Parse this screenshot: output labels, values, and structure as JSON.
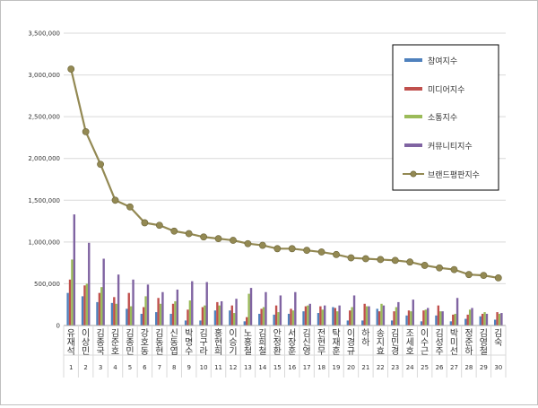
{
  "chart_data": {
    "type": "bar",
    "title": "",
    "xlabel": "",
    "ylabel": "",
    "ylim": [
      0,
      3500000
    ],
    "yticks": [
      0,
      500000,
      1000000,
      1500000,
      2000000,
      2500000,
      3000000,
      3500000
    ],
    "ytick_labels": [
      "0",
      "500,000",
      "1,000,000",
      "1,500,000",
      "2,000,000",
      "2,500,000",
      "3,000,000",
      "3,500,000"
    ],
    "grid": true,
    "legend_position": "top-right",
    "categories": [
      "1",
      "2",
      "3",
      "4",
      "5",
      "6",
      "7",
      "8",
      "9",
      "10",
      "11",
      "12",
      "13",
      "14",
      "15",
      "16",
      "17",
      "18",
      "19",
      "20",
      "21",
      "22",
      "23",
      "24",
      "25",
      "26",
      "27",
      "28",
      "29",
      "30"
    ],
    "category_names": [
      "유재석",
      "이상민",
      "김종국",
      "김준호",
      "김종민",
      "강호동",
      "김동현",
      "신동엽",
      "박명수",
      "김구라",
      "홍현희",
      "이승기",
      "노홍철",
      "김희철",
      "안정환",
      "서장훈",
      "김신영",
      "전현무",
      "탁재훈",
      "이경규",
      "하하",
      "송지효",
      "김민경",
      "조세호",
      "이수근",
      "김성주",
      "박미선",
      "정준하",
      "김영철",
      "김숙"
    ],
    "series": [
      {
        "name": "참여지수",
        "kind": "bar",
        "color": "#4F81BD",
        "values": [
          390000,
          350000,
          280000,
          270000,
          200000,
          140000,
          160000,
          140000,
          60000,
          60000,
          180000,
          180000,
          50000,
          140000,
          130000,
          140000,
          170000,
          150000,
          220000,
          60000,
          60000,
          200000,
          60000,
          120000,
          50000,
          120000,
          50000,
          80000,
          110000,
          70000
        ]
      },
      {
        "name": "미디어지수",
        "kind": "bar",
        "color": "#C0504D",
        "values": [
          550000,
          480000,
          390000,
          340000,
          390000,
          220000,
          330000,
          260000,
          190000,
          220000,
          280000,
          240000,
          100000,
          200000,
          240000,
          200000,
          230000,
          230000,
          210000,
          180000,
          260000,
          170000,
          170000,
          180000,
          180000,
          240000,
          130000,
          130000,
          140000,
          160000
        ]
      },
      {
        "name": "소통지수",
        "kind": "bar",
        "color": "#9BBB59",
        "values": [
          790000,
          500000,
          460000,
          260000,
          230000,
          350000,
          260000,
          290000,
          300000,
          240000,
          240000,
          150000,
          380000,
          220000,
          160000,
          180000,
          240000,
          190000,
          170000,
          220000,
          230000,
          260000,
          220000,
          170000,
          190000,
          170000,
          140000,
          190000,
          160000,
          140000
        ]
      },
      {
        "name": "커뮤니티지수",
        "kind": "bar",
        "color": "#8064A2",
        "values": [
          1330000,
          990000,
          800000,
          610000,
          550000,
          490000,
          400000,
          430000,
          530000,
          520000,
          290000,
          320000,
          450000,
          400000,
          360000,
          400000,
          260000,
          240000,
          240000,
          360000,
          230000,
          240000,
          280000,
          310000,
          210000,
          170000,
          330000,
          210000,
          140000,
          150000
        ]
      },
      {
        "name": "브랜드평판지수",
        "kind": "line",
        "color": "#938953",
        "values": [
          3070000,
          2320000,
          1930000,
          1500000,
          1420000,
          1230000,
          1200000,
          1130000,
          1100000,
          1060000,
          1040000,
          1020000,
          980000,
          960000,
          920000,
          920000,
          900000,
          880000,
          850000,
          810000,
          800000,
          790000,
          780000,
          760000,
          720000,
          690000,
          670000,
          610000,
          600000,
          570000
        ]
      }
    ]
  }
}
